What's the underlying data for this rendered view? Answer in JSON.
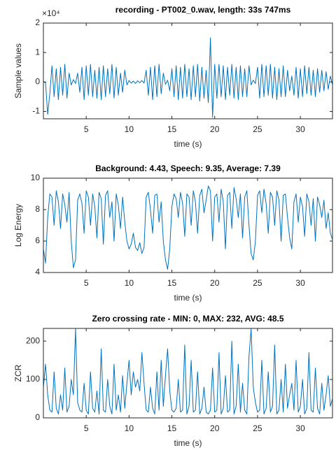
{
  "chart_data": [
    {
      "type": "line",
      "title": "recording - PT002_0.wav, length: 33s 747ms",
      "y_multiplier": "×10⁴",
      "xlabel": "time (s)",
      "ylabel": "Sample values",
      "color": "#0072bd",
      "xlim": [
        0,
        33.75
      ],
      "xticks": [
        5,
        10,
        15,
        20,
        25,
        30
      ],
      "ylim": [
        -1.25,
        2
      ],
      "yticks": [
        -1,
        0,
        1,
        2
      ],
      "x": [
        0,
        0.25,
        0.5,
        0.75,
        1,
        1.25,
        1.5,
        1.75,
        2,
        2.25,
        2.5,
        2.75,
        3,
        3.25,
        3.5,
        3.75,
        4,
        4.25,
        4.5,
        4.75,
        5,
        5.25,
        5.5,
        5.75,
        6,
        6.25,
        6.5,
        6.75,
        7,
        7.25,
        7.5,
        7.75,
        8,
        8.25,
        8.5,
        8.75,
        9,
        9.25,
        9.5,
        9.75,
        10,
        10.25,
        10.5,
        10.75,
        11,
        11.25,
        11.5,
        11.75,
        12,
        12.25,
        12.5,
        12.75,
        13,
        13.25,
        13.5,
        13.75,
        14,
        14.25,
        14.5,
        14.75,
        15,
        15.25,
        15.5,
        15.75,
        16,
        16.25,
        16.5,
        16.75,
        17,
        17.25,
        17.5,
        17.75,
        18,
        18.25,
        18.5,
        18.75,
        19,
        19.25,
        19.5,
        19.75,
        20,
        20.25,
        20.5,
        20.75,
        21,
        21.25,
        21.5,
        21.75,
        22,
        22.25,
        22.5,
        22.75,
        23,
        23.25,
        23.5,
        23.75,
        24,
        24.25,
        24.5,
        24.75,
        25,
        25.25,
        25.5,
        25.75,
        26,
        26.25,
        26.5,
        26.75,
        27,
        27.25,
        27.5,
        27.75,
        28,
        28.25,
        28.5,
        28.75,
        29,
        29.25,
        29.5,
        29.75,
        30,
        30.25,
        30.5,
        30.75,
        31,
        31.25,
        31.5,
        31.75,
        32,
        32.25,
        32.5,
        32.75,
        33,
        33.25,
        33.5,
        33.75
      ],
      "values": [
        0.02,
        -0.03,
        -1.1,
        -0.4,
        0.55,
        -0.5,
        0.45,
        -0.6,
        0.5,
        -0.45,
        0.6,
        -0.55,
        0.3,
        -0.1,
        0.08,
        -0.05,
        0.3,
        -0.35,
        0.5,
        -0.6,
        0.55,
        -0.45,
        0.6,
        -0.5,
        0.4,
        -0.55,
        0.5,
        -0.6,
        0.55,
        -0.5,
        0.45,
        -0.4,
        0.6,
        -0.55,
        0.5,
        -0.45,
        0.3,
        -0.35,
        0.4,
        -0.1,
        0.05,
        -0.04,
        0.03,
        -0.05,
        0.04,
        -0.03,
        0.05,
        -0.04,
        0.4,
        -0.45,
        0.5,
        -0.6,
        0.55,
        -0.5,
        0.6,
        -0.4,
        0.3,
        -0.08,
        0.06,
        -0.3,
        0.45,
        -0.5,
        0.55,
        -0.6,
        0.5,
        -0.55,
        0.6,
        -0.5,
        0.45,
        -0.6,
        0.55,
        -0.5,
        0.6,
        -0.65,
        0.5,
        -0.55,
        0.4,
        -0.7,
        1.5,
        -1.2,
        0.6,
        -0.55,
        0.6,
        -0.5,
        0.55,
        -0.6,
        0.5,
        -0.45,
        0.6,
        -0.55,
        0.5,
        -0.6,
        0.55,
        -0.5,
        0.45,
        -0.5,
        0.55,
        -0.1,
        0.06,
        -0.05,
        0.5,
        -0.55,
        0.6,
        -0.5,
        0.55,
        -0.45,
        0.6,
        -0.55,
        0.5,
        -0.6,
        0.45,
        -0.5,
        0.55,
        -0.5,
        0.4,
        -0.3,
        0.2,
        -0.45,
        0.5,
        -0.55,
        0.45,
        -0.5,
        0.55,
        -0.4,
        0.5,
        -0.45,
        0.4,
        -0.5,
        0.45,
        -0.35,
        0.4,
        -0.3,
        0.35,
        -0.25,
        0.2,
        -0.1
      ]
    },
    {
      "type": "line",
      "title": "Background: 4.43, Speech: 9.35, Average: 7.39",
      "xlabel": "time (s)",
      "ylabel": "Log Energy",
      "color": "#0072bd",
      "xlim": [
        0,
        33.75
      ],
      "xticks": [
        5,
        10,
        15,
        20,
        25,
        30
      ],
      "ylim": [
        4,
        10
      ],
      "yticks": [
        4,
        6,
        8,
        10
      ],
      "x": [
        0,
        0.25,
        0.5,
        0.75,
        1,
        1.25,
        1.5,
        1.75,
        2,
        2.25,
        2.5,
        2.75,
        3,
        3.25,
        3.5,
        3.75,
        4,
        4.25,
        4.5,
        4.75,
        5,
        5.25,
        5.5,
        5.75,
        6,
        6.25,
        6.5,
        6.75,
        7,
        7.25,
        7.5,
        7.75,
        8,
        8.25,
        8.5,
        8.75,
        9,
        9.25,
        9.5,
        9.75,
        10,
        10.25,
        10.5,
        10.75,
        11,
        11.25,
        11.5,
        11.75,
        12,
        12.25,
        12.5,
        12.75,
        13,
        13.25,
        13.5,
        13.75,
        14,
        14.25,
        14.5,
        14.75,
        15,
        15.25,
        15.5,
        15.75,
        16,
        16.25,
        16.5,
        16.75,
        17,
        17.25,
        17.5,
        17.75,
        18,
        18.25,
        18.5,
        18.75,
        19,
        19.25,
        19.5,
        19.75,
        20,
        20.25,
        20.5,
        20.75,
        21,
        21.25,
        21.5,
        21.75,
        22,
        22.25,
        22.5,
        22.75,
        23,
        23.25,
        23.5,
        23.75,
        24,
        24.25,
        24.5,
        24.75,
        25,
        25.25,
        25.5,
        25.75,
        26,
        26.25,
        26.5,
        26.75,
        27,
        27.25,
        27.5,
        27.75,
        28,
        28.25,
        28.5,
        28.75,
        29,
        29.25,
        29.5,
        29.75,
        30,
        30.25,
        30.5,
        30.75,
        31,
        31.25,
        31.5,
        31.75,
        32,
        32.25,
        32.5,
        32.75,
        33,
        33.25,
        33.5,
        33.75
      ],
      "values": [
        5.5,
        4.6,
        7.5,
        9.0,
        8.8,
        7.0,
        9.2,
        8.5,
        6.8,
        9.0,
        8.3,
        7.2,
        9.1,
        6.0,
        4.3,
        4.8,
        8.6,
        9.0,
        8.4,
        6.5,
        9.2,
        8.8,
        7.0,
        9.0,
        8.2,
        6.2,
        9.1,
        8.7,
        5.8,
        8.9,
        9.2,
        7.5,
        8.5,
        6.0,
        9.0,
        8.3,
        6.8,
        8.8,
        7.2,
        6.0,
        5.5,
        5.8,
        6.5,
        5.6,
        5.4,
        5.9,
        5.2,
        5.6,
        8.8,
        9.1,
        8.0,
        6.5,
        8.9,
        9.0,
        7.2,
        8.5,
        6.0,
        4.8,
        4.2,
        5.5,
        8.2,
        9.0,
        8.7,
        7.5,
        9.1,
        8.4,
        6.3,
        9.0,
        8.8,
        7.0,
        9.2,
        8.5,
        6.5,
        8.9,
        9.3,
        7.8,
        8.6,
        9.5,
        9.2,
        6.0,
        8.8,
        9.0,
        7.2,
        9.3,
        8.5,
        5.5,
        8.9,
        9.1,
        6.8,
        9.4,
        8.7,
        7.5,
        9.0,
        6.2,
        8.8,
        9.2,
        7.0,
        5.2,
        4.8,
        6.0,
        8.9,
        9.2,
        7.8,
        9.3,
        8.4,
        6.5,
        9.1,
        8.8,
        7.0,
        9.2,
        8.6,
        6.0,
        8.9,
        9.0,
        7.5,
        6.2,
        5.5,
        8.5,
        9.0,
        7.2,
        8.8,
        8.2,
        6.3,
        9.0,
        8.5,
        7.0,
        8.7,
        6.0,
        8.8,
        8.3,
        7.5,
        8.6,
        6.8,
        7.8,
        6.5,
        6.1
      ]
    },
    {
      "type": "line",
      "title": "Zero crossing rate - MIN: 0, MAX: 232, AVG: 48.5",
      "xlabel": "time (s)",
      "ylabel": "ZCR",
      "color": "#0072bd",
      "xlim": [
        0,
        33.75
      ],
      "xticks": [
        5,
        10,
        15,
        20,
        25,
        30
      ],
      "ylim": [
        0,
        233
      ],
      "yticks": [
        0,
        100,
        200
      ],
      "x": [
        0,
        0.25,
        0.5,
        0.75,
        1,
        1.25,
        1.5,
        1.75,
        2,
        2.25,
        2.5,
        2.75,
        3,
        3.25,
        3.5,
        3.75,
        4,
        4.25,
        4.5,
        4.75,
        5,
        5.25,
        5.5,
        5.75,
        6,
        6.25,
        6.5,
        6.75,
        7,
        7.25,
        7.5,
        7.75,
        8,
        8.25,
        8.5,
        8.75,
        9,
        9.25,
        9.5,
        9.75,
        10,
        10.25,
        10.5,
        10.75,
        11,
        11.25,
        11.5,
        11.75,
        12,
        12.25,
        12.5,
        12.75,
        13,
        13.25,
        13.5,
        13.75,
        14,
        14.25,
        14.5,
        14.75,
        15,
        15.25,
        15.5,
        15.75,
        16,
        16.25,
        16.5,
        16.75,
        17,
        17.25,
        17.5,
        17.75,
        18,
        18.25,
        18.5,
        18.75,
        19,
        19.25,
        19.5,
        19.75,
        20,
        20.25,
        20.5,
        20.75,
        21,
        21.25,
        21.5,
        21.75,
        22,
        22.25,
        22.5,
        22.75,
        23,
        23.25,
        23.5,
        23.75,
        24,
        24.25,
        24.5,
        24.75,
        25,
        25.25,
        25.5,
        25.75,
        26,
        26.25,
        26.5,
        26.75,
        27,
        27.25,
        27.5,
        27.75,
        28,
        28.25,
        28.5,
        28.75,
        29,
        29.25,
        29.5,
        29.75,
        30,
        30.25,
        30.5,
        30.75,
        31,
        31.25,
        31.5,
        31.75,
        32,
        32.25,
        32.5,
        32.75,
        33,
        33.25,
        33.5,
        33.75
      ],
      "values": [
        80,
        140,
        60,
        20,
        15,
        120,
        25,
        10,
        60,
        20,
        130,
        15,
        30,
        100,
        60,
        232,
        40,
        20,
        15,
        90,
        20,
        10,
        120,
        25,
        15,
        70,
        10,
        180,
        20,
        15,
        100,
        30,
        10,
        140,
        20,
        60,
        15,
        110,
        25,
        90,
        150,
        60,
        120,
        80,
        100,
        70,
        170,
        90,
        20,
        15,
        80,
        25,
        10,
        120,
        20,
        150,
        30,
        110,
        180,
        70,
        20,
        15,
        25,
        100,
        15,
        20,
        190,
        10,
        30,
        150,
        15,
        20,
        120,
        10,
        25,
        80,
        15,
        10,
        20,
        130,
        15,
        20,
        170,
        10,
        25,
        110,
        15,
        20,
        200,
        10,
        30,
        140,
        15,
        90,
        20,
        10,
        160,
        232,
        80,
        40,
        15,
        20,
        150,
        10,
        25,
        120,
        15,
        30,
        190,
        10,
        20,
        100,
        15,
        140,
        25,
        60,
        90,
        20,
        150,
        15,
        30,
        100,
        10,
        25,
        170,
        20,
        15,
        130,
        25,
        10,
        90,
        20,
        60,
        110,
        30,
        50
      ]
    }
  ]
}
